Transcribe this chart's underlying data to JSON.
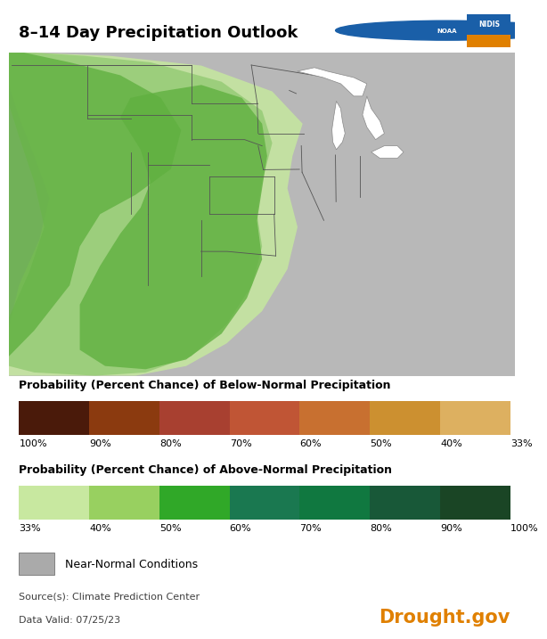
{
  "title": "8–14 Day Precipitation Outlook",
  "title_fontsize": 13,
  "background_color": "#ffffff",
  "map_bg_color": "#b8b8b8",
  "below_normal_label": "Probability (Percent Chance) of Below-Normal Precipitation",
  "above_normal_label": "Probability (Percent Chance) of Above-Normal Precipitation",
  "below_normal_colors": [
    "#4a1a0a",
    "#8b3a0f",
    "#a84030",
    "#c05535",
    "#c87030",
    "#cc9030",
    "#ddb060",
    "#f0d898"
  ],
  "below_normal_labels": [
    "100%",
    "90%",
    "80%",
    "70%",
    "60%",
    "50%",
    "40%",
    "33%"
  ],
  "above_normal_colors": [
    "#c8e8a0",
    "#98d060",
    "#30a828",
    "#1a7850",
    "#107840",
    "#185838",
    "#1a4525",
    "#0d2a10"
  ],
  "above_normal_labels": [
    "33%",
    "40%",
    "50%",
    "60%",
    "70%",
    "80%",
    "90%",
    "100%"
  ],
  "near_normal_color": "#aaaaaa",
  "near_normal_label": "Near-Normal Conditions",
  "source_text": "Source(s): Climate Prediction Center",
  "date_text": "Data Valid: 07/25/23",
  "drought_gov_text": "Drought.gov",
  "drought_gov_color": "#e08000",
  "source_fontsize": 8,
  "legend_label_fontsize": 8,
  "legend_title_fontsize": 9,
  "map_state_color": "#888888",
  "map_county_color": "#aaaaaa"
}
